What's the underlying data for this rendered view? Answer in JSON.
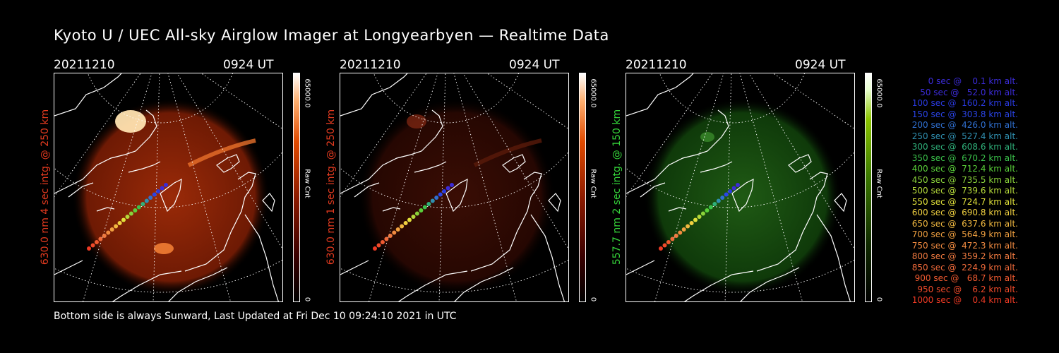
{
  "title": "Kyoto U / UEC All-sky Airglow Imager at Longyearbyen — Realtime Data",
  "footer": "Bottom side is always Sunward, Last Updated at Fri Dec 10 09:24:10 2021 in UTC",
  "panels": [
    {
      "date": "20211210",
      "time": "0924 UT",
      "label": "630.0 nm 4 sec intg. @ 250 km",
      "label_color": "#e23a1f",
      "colorbar_top": "65000.0",
      "colorbar_label": "Raw Cnt",
      "colorbar_bottom": "0",
      "emission": "red",
      "brightness": "bright"
    },
    {
      "date": "20211210",
      "time": "0924 UT",
      "label": "630.0 nm 1 sec intg. @ 250 km",
      "label_color": "#e23a1f",
      "colorbar_top": "65000.0",
      "colorbar_label": "Raw Cnt",
      "colorbar_bottom": "0",
      "emission": "red",
      "brightness": "dim"
    },
    {
      "date": "20211210",
      "time": "0924 UT",
      "label": "557.7 nm 2 sec intg. @ 150 km",
      "label_color": "#35d43a",
      "colorbar_top": "65000.0",
      "colorbar_label": "Raw Cnt",
      "colorbar_bottom": "0",
      "emission": "green",
      "brightness": "dim"
    }
  ],
  "legend": [
    {
      "text": "   0 sec @    0.1 km alt.",
      "color": "#3b2bd8"
    },
    {
      "text": "  50 sec @   52.0 km alt.",
      "color": "#3b2bd8"
    },
    {
      "text": " 100 sec @  160.2 km alt.",
      "color": "#2a3ae0"
    },
    {
      "text": " 150 sec @  303.8 km alt.",
      "color": "#2a44e8"
    },
    {
      "text": " 200 sec @  426.0 km alt.",
      "color": "#2f6fd0"
    },
    {
      "text": " 250 sec @  527.4 km alt.",
      "color": "#2f8fb0"
    },
    {
      "text": " 300 sec @  608.6 km alt.",
      "color": "#2fb07a"
    },
    {
      "text": " 350 sec @  670.2 km alt.",
      "color": "#3ac04a"
    },
    {
      "text": " 400 sec @  712.4 km alt.",
      "color": "#5ad03a"
    },
    {
      "text": " 450 sec @  735.5 km alt.",
      "color": "#8ad23a"
    },
    {
      "text": " 500 sec @  739.6 km alt.",
      "color": "#b4d83a"
    },
    {
      "text": " 550 sec @  724.7 km alt.",
      "color": "#e0e03a"
    },
    {
      "text": " 600 sec @  690.8 km alt.",
      "color": "#f0d040"
    },
    {
      "text": " 650 sec @  637.6 km alt.",
      "color": "#f0b840"
    },
    {
      "text": " 700 sec @  564.9 km alt.",
      "color": "#f0a040"
    },
    {
      "text": " 750 sec @  472.3 km alt.",
      "color": "#f08a40"
    },
    {
      "text": " 800 sec @  359.2 km alt.",
      "color": "#f07a40"
    },
    {
      "text": " 850 sec @  224.9 km alt.",
      "color": "#f06a3a"
    },
    {
      "text": " 900 sec @   68.7 km alt.",
      "color": "#f05a30"
    },
    {
      "text": " 950 sec @    6.2 km alt.",
      "color": "#f04a2a"
    },
    {
      "text": "1000 sec @    0.4 km alt.",
      "color": "#ee3a24"
    }
  ]
}
